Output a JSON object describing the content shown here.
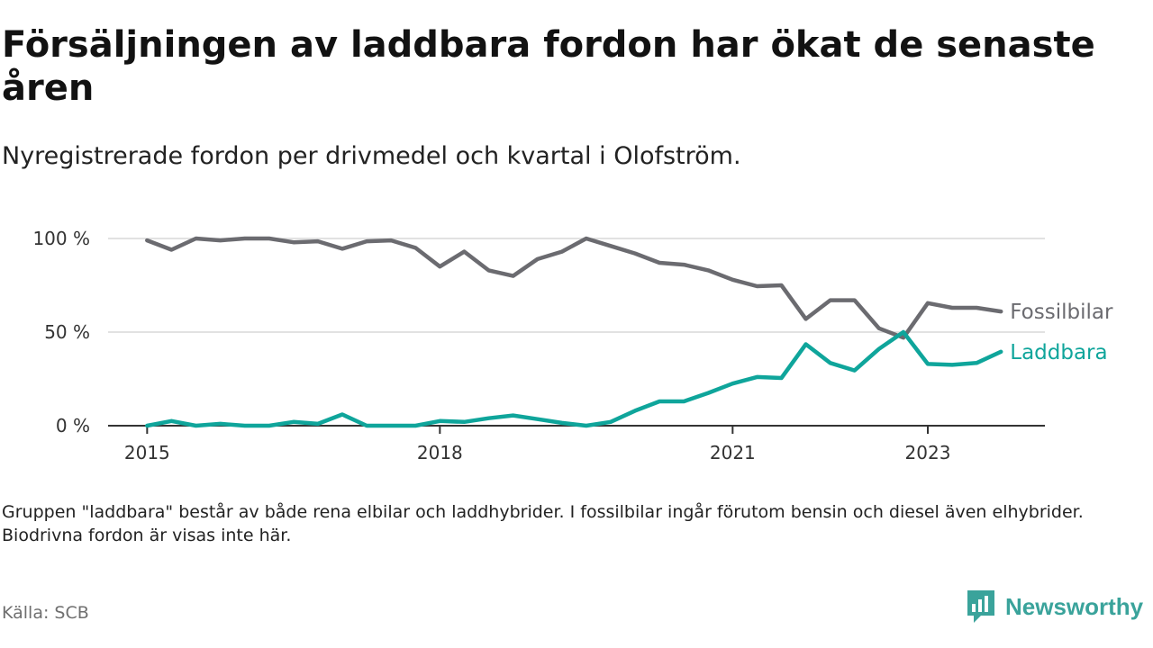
{
  "title": "Försäljningen av laddbara fordon har ökat de senaste åren",
  "subtitle": "Nyregistrerade fordon per drivmedel och kvartal i Olofström.",
  "note": "Gruppen \"laddbara\" består av både rena elbilar och laddhybrider. I fossilbilar ingår förutom bensin och diesel även elhybrider. Biodrivna fordon är visas inte här.",
  "source": "Källa: SCB",
  "brand": {
    "name": "Newsworthy",
    "icon": "newsworthy-logo-icon",
    "color": "#3aa39b"
  },
  "chart_data": {
    "type": "line",
    "title": "Försäljningen av laddbara fordon har ökat de senaste åren",
    "xlabel": "",
    "ylabel": "",
    "x_unit": "year (quarterly data)",
    "x": [
      2015.0,
      2015.25,
      2015.5,
      2015.75,
      2016.0,
      2016.25,
      2016.5,
      2016.75,
      2017.0,
      2017.25,
      2017.5,
      2017.75,
      2018.0,
      2018.25,
      2018.5,
      2018.75,
      2019.0,
      2019.25,
      2019.5,
      2019.75,
      2020.0,
      2020.25,
      2020.5,
      2020.75,
      2021.0,
      2021.25,
      2021.5,
      2021.75,
      2022.0,
      2022.25,
      2022.5,
      2022.75,
      2023.0,
      2023.25,
      2023.5,
      2023.75
    ],
    "xlim": [
      2014.6,
      2024.2
    ],
    "xticks": [
      2015,
      2018,
      2021,
      2023
    ],
    "xtick_labels": [
      "2015",
      "2018",
      "2021",
      "2023"
    ],
    "ylim": [
      0,
      100
    ],
    "yticks": [
      0,
      50,
      100
    ],
    "ytick_labels": [
      "0 %",
      "50 %",
      "100 %"
    ],
    "grid": true,
    "legend": "inline labels at end of lines (right)",
    "series": [
      {
        "name": "Fossilbilar",
        "color": "#6b6b70",
        "values": [
          99,
          94,
          100,
          99,
          100,
          100,
          98,
          98.5,
          94.5,
          98.5,
          99,
          95,
          85,
          93,
          83,
          80,
          89,
          93,
          100,
          96,
          92,
          87,
          86,
          83,
          78,
          74.5,
          75,
          57,
          67,
          67,
          52,
          47,
          65.5,
          63,
          63,
          61
        ]
      },
      {
        "name": "Laddbara",
        "color": "#0fa59b",
        "values": [
          0,
          2.5,
          0,
          1,
          0,
          0,
          2,
          1,
          6,
          0,
          0,
          0,
          2.5,
          2,
          4,
          5.5,
          3.5,
          1.5,
          0,
          2,
          8,
          13,
          13,
          17.5,
          22.5,
          26,
          25.5,
          43.5,
          33.5,
          29.5,
          41,
          50,
          33,
          32.5,
          33.5,
          39.5
        ]
      }
    ]
  }
}
